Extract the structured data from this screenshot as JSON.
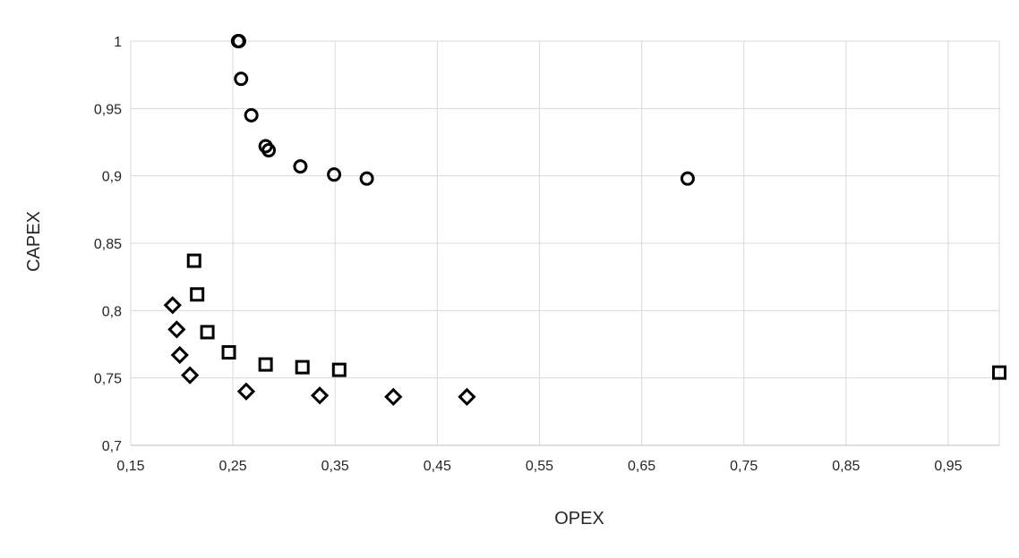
{
  "chart_data": {
    "type": "scatter",
    "title": "",
    "xlabel": "OPEX",
    "ylabel": "CAPEX",
    "xlim": [
      0.15,
      1.0
    ],
    "ylim": [
      0.7,
      1.0
    ],
    "grid": true,
    "legend": "none",
    "x_ticks": [
      "0,15",
      "0,25",
      "0,35",
      "0,45",
      "0,55",
      "0,65",
      "0,75",
      "0,85",
      "0,95"
    ],
    "y_ticks": [
      "0,7",
      "0,75",
      "0,8",
      "0,85",
      "0,9",
      "0,95",
      "1"
    ],
    "series": [
      {
        "marker": "circle",
        "color": "#000000",
        "points": [
          [
            0.256,
            1.0
          ],
          [
            0.255,
            1.0
          ],
          [
            0.258,
            0.972
          ],
          [
            0.268,
            0.945
          ],
          [
            0.282,
            0.922
          ],
          [
            0.285,
            0.919
          ],
          [
            0.316,
            0.907
          ],
          [
            0.349,
            0.901
          ],
          [
            0.381,
            0.898
          ],
          [
            0.695,
            0.898
          ]
        ]
      },
      {
        "marker": "square",
        "color": "#000000",
        "points": [
          [
            0.212,
            0.837
          ],
          [
            0.215,
            0.812
          ],
          [
            0.225,
            0.784
          ],
          [
            0.246,
            0.769
          ],
          [
            0.282,
            0.76
          ],
          [
            0.318,
            0.758
          ],
          [
            0.354,
            0.756
          ],
          [
            1.0,
            0.754
          ]
        ]
      },
      {
        "marker": "diamond",
        "color": "#000000",
        "points": [
          [
            0.191,
            0.804
          ],
          [
            0.195,
            0.786
          ],
          [
            0.198,
            0.767
          ],
          [
            0.208,
            0.752
          ],
          [
            0.263,
            0.74
          ],
          [
            0.335,
            0.737
          ],
          [
            0.407,
            0.736
          ],
          [
            0.479,
            0.736
          ]
        ]
      }
    ]
  }
}
